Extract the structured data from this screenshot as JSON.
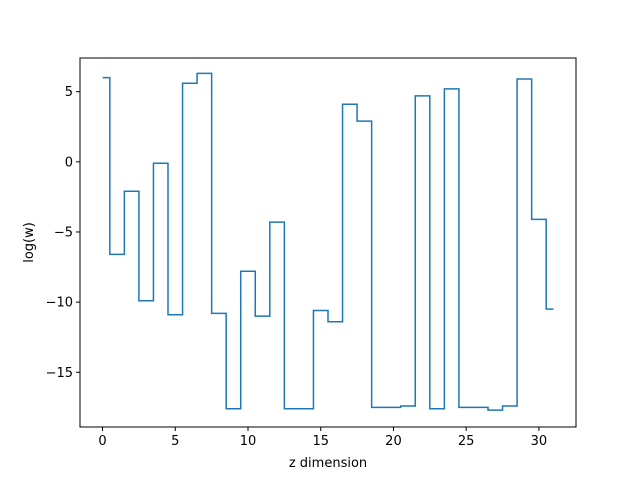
{
  "chart_data": {
    "type": "line",
    "step": "mid",
    "xlabel": "z dimension",
    "ylabel": "log(w)",
    "xlim": [
      -1.55,
      32.55
    ],
    "ylim": [
      -18.9,
      7.4
    ],
    "xticks": [
      0,
      5,
      10,
      15,
      20,
      25,
      30
    ],
    "yticks": [
      -15,
      -10,
      -5,
      0,
      5
    ],
    "grid": false,
    "series": [
      {
        "color": "#1f77b4",
        "x": [
          0,
          1,
          2,
          3,
          4,
          5,
          6,
          7,
          8,
          9,
          10,
          11,
          12,
          13,
          14,
          15,
          16,
          17,
          18,
          19,
          20,
          21,
          22,
          23,
          24,
          25,
          26,
          27,
          28,
          29,
          30,
          31
        ],
        "values": [
          6.0,
          -6.6,
          -2.1,
          -9.9,
          -0.1,
          -10.9,
          5.6,
          6.3,
          -10.8,
          -17.6,
          -7.8,
          -11.0,
          -4.3,
          -17.6,
          -17.6,
          -10.6,
          -11.4,
          4.1,
          2.9,
          -17.5,
          -17.5,
          -17.4,
          4.7,
          -17.6,
          5.2,
          -17.5,
          -17.5,
          -17.7,
          -17.4,
          5.9,
          -4.1,
          -10.5
        ]
      }
    ]
  }
}
